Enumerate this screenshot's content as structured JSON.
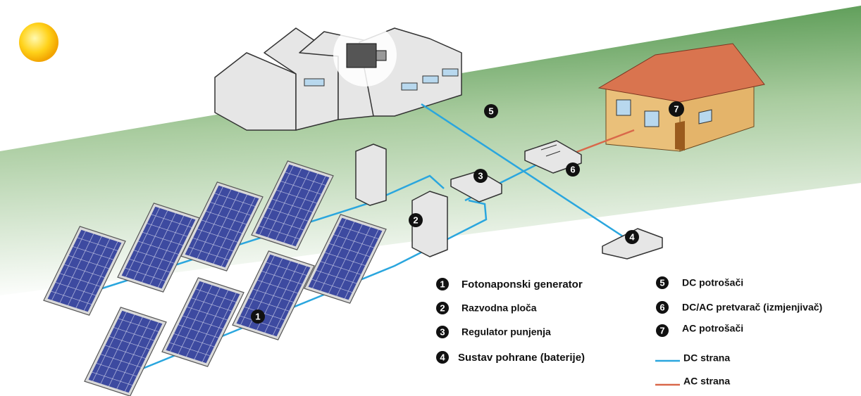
{
  "components": [
    {
      "number": "1",
      "label": "Fotonaponski generator"
    },
    {
      "number": "2",
      "label": "Razvodna ploča"
    },
    {
      "number": "3",
      "label": "Regulator punjenja"
    },
    {
      "number": "4",
      "label": "Sustav pohrane (baterije)"
    },
    {
      "number": "5",
      "label": "DC potrošači"
    },
    {
      "number": "6",
      "label": "DC/AC pretvarač (izmjenjivač)"
    },
    {
      "number": "7",
      "label": "AC potrošači"
    }
  ],
  "line_legend": [
    {
      "label": "DC strana"
    },
    {
      "label": "AC strana"
    }
  ]
}
